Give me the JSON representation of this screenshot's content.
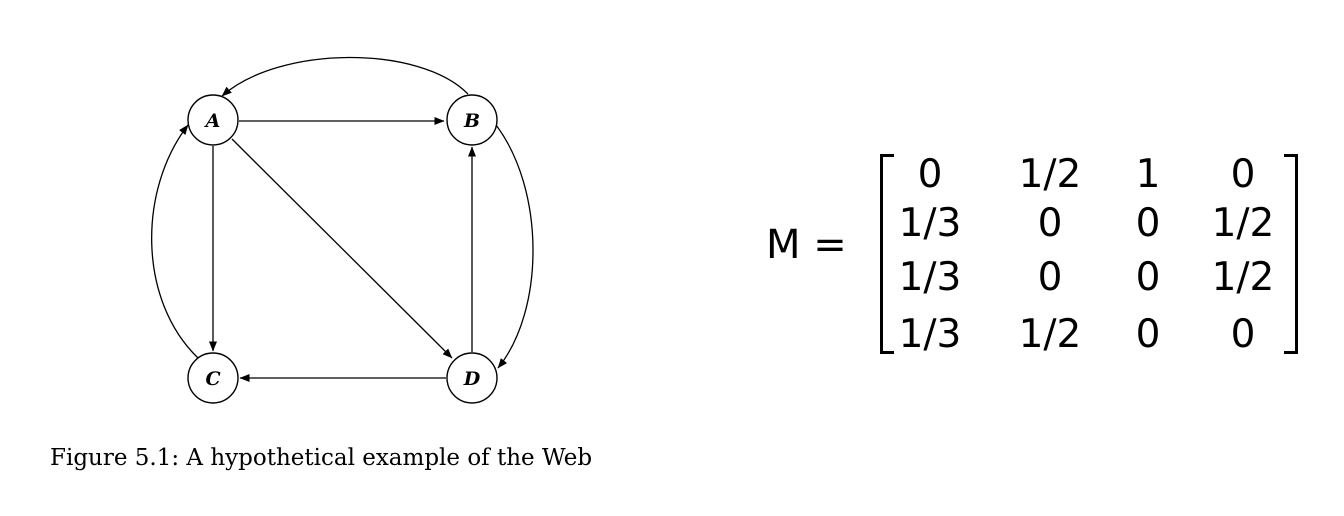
{
  "graph": {
    "nodes": [
      {
        "id": "A",
        "label": "A"
      },
      {
        "id": "B",
        "label": "B"
      },
      {
        "id": "C",
        "label": "C"
      },
      {
        "id": "D",
        "label": "D"
      }
    ],
    "edges": [
      {
        "from": "A",
        "to": "B"
      },
      {
        "from": "A",
        "to": "C"
      },
      {
        "from": "A",
        "to": "D"
      },
      {
        "from": "B",
        "to": "A"
      },
      {
        "from": "B",
        "to": "D"
      },
      {
        "from": "C",
        "to": "A"
      },
      {
        "from": "D",
        "to": "B"
      },
      {
        "from": "D",
        "to": "C"
      }
    ]
  },
  "caption": "Figure 5.1: A hypothetical example of the Web",
  "matrix": {
    "lhs": "M =",
    "rows": [
      [
        "0",
        "1/2",
        "1",
        "0"
      ],
      [
        "1/3",
        "0",
        "0",
        "1/2"
      ],
      [
        "1/3",
        "0",
        "0",
        "1/2"
      ],
      [
        "1/3",
        "1/2",
        "0",
        "0"
      ]
    ]
  }
}
